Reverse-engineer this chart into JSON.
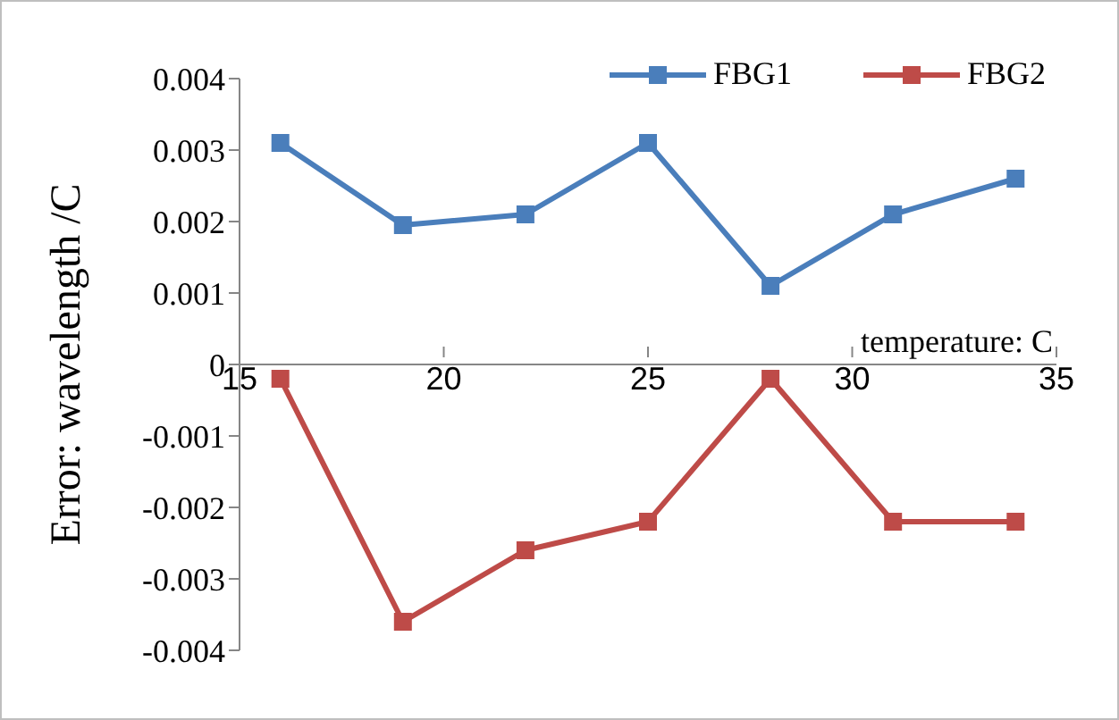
{
  "chart_data": {
    "type": "line",
    "ylabel": "Error:  wavelength  /C",
    "xlabel": "temperature: C",
    "x": [
      16,
      19,
      22,
      25,
      28,
      31,
      34
    ],
    "series": [
      {
        "name": "FBG1",
        "color": "#4a7ebb",
        "values": [
          0.0031,
          0.00195,
          0.0021,
          0.0031,
          0.0011,
          0.0021,
          0.0026
        ]
      },
      {
        "name": "FBG2",
        "color": "#be4b48",
        "values": [
          -0.0002,
          -0.0036,
          -0.0026,
          -0.0022,
          -0.0002,
          -0.0022,
          -0.0022
        ]
      }
    ],
    "xlim": [
      15,
      35
    ],
    "xticks": [
      15,
      20,
      25,
      30,
      35
    ],
    "ylim": [
      -0.004,
      0.004
    ],
    "yticks": [
      -0.004,
      -0.003,
      -0.002,
      -0.001,
      0,
      0.001,
      0.002,
      0.003,
      0.004
    ],
    "marker": "square",
    "line_style": "solid",
    "legend": "top right",
    "grid": false
  }
}
